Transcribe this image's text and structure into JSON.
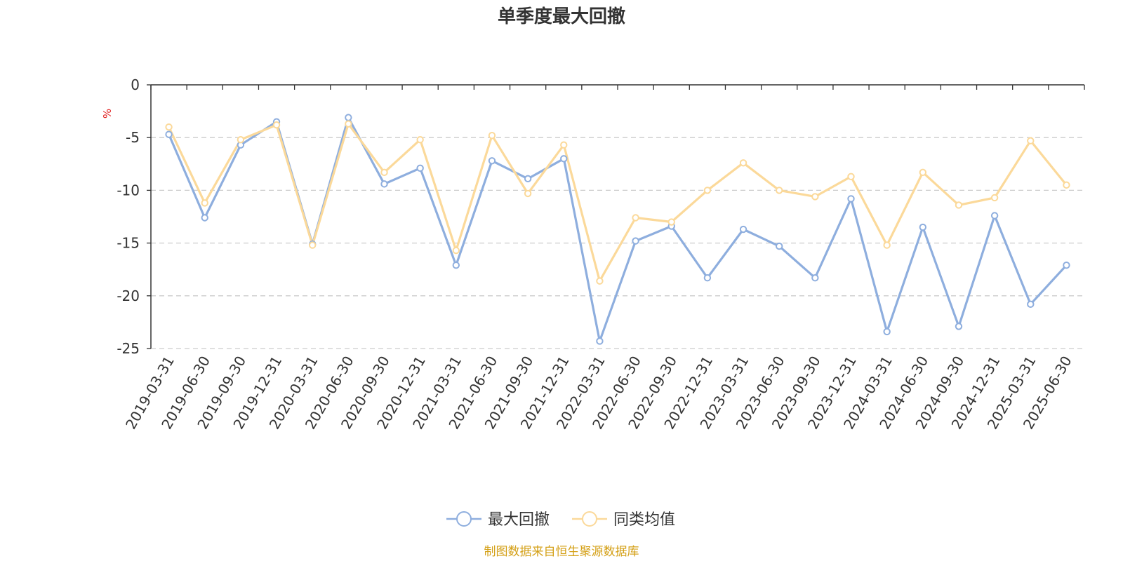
{
  "chart_data": {
    "type": "line",
    "title": "单季度最大回撤",
    "ylabel": "%",
    "ylim": [
      -25,
      0
    ],
    "yticks": [
      0,
      -5,
      -10,
      -15,
      -20,
      -25
    ],
    "grid": true,
    "legend_position": "bottom-center",
    "categories": [
      "2019-03-31",
      "2019-06-30",
      "2019-09-30",
      "2019-12-31",
      "2020-03-31",
      "2020-06-30",
      "2020-09-30",
      "2020-12-31",
      "2021-03-31",
      "2021-06-30",
      "2021-09-30",
      "2021-12-31",
      "2022-03-31",
      "2022-06-30",
      "2022-09-30",
      "2022-12-31",
      "2023-03-31",
      "2023-06-30",
      "2023-09-30",
      "2023-12-31",
      "2024-03-31",
      "2024-06-30",
      "2024-09-30",
      "2024-12-31",
      "2025-03-31",
      "2025-06-30"
    ],
    "series": [
      {
        "name": "最大回撤",
        "color": "#8eaede",
        "values": [
          -4.7,
          -12.6,
          -5.7,
          -3.5,
          -15.1,
          -3.1,
          -9.4,
          -7.9,
          -17.1,
          -7.2,
          -8.9,
          -7.0,
          -24.3,
          -14.8,
          -13.4,
          -18.3,
          -13.7,
          -15.3,
          -18.3,
          -10.8,
          -23.4,
          -13.5,
          -22.9,
          -12.4,
          -20.8,
          -17.1
        ]
      },
      {
        "name": "同类均值",
        "color": "#fbd99a",
        "values": [
          -4.0,
          -11.2,
          -5.2,
          -3.8,
          -15.2,
          -3.7,
          -8.3,
          -5.2,
          -15.7,
          -4.8,
          -10.3,
          -5.7,
          -18.6,
          -12.6,
          -13.0,
          -10.0,
          -7.4,
          -10.0,
          -10.6,
          -8.7,
          -15.2,
          -8.3,
          -11.4,
          -10.7,
          -5.3,
          -9.5
        ]
      }
    ]
  },
  "footer": {
    "text": "制图数据来自恒生聚源数据库",
    "color": "#d4a017"
  },
  "unit_color": "#e02020"
}
